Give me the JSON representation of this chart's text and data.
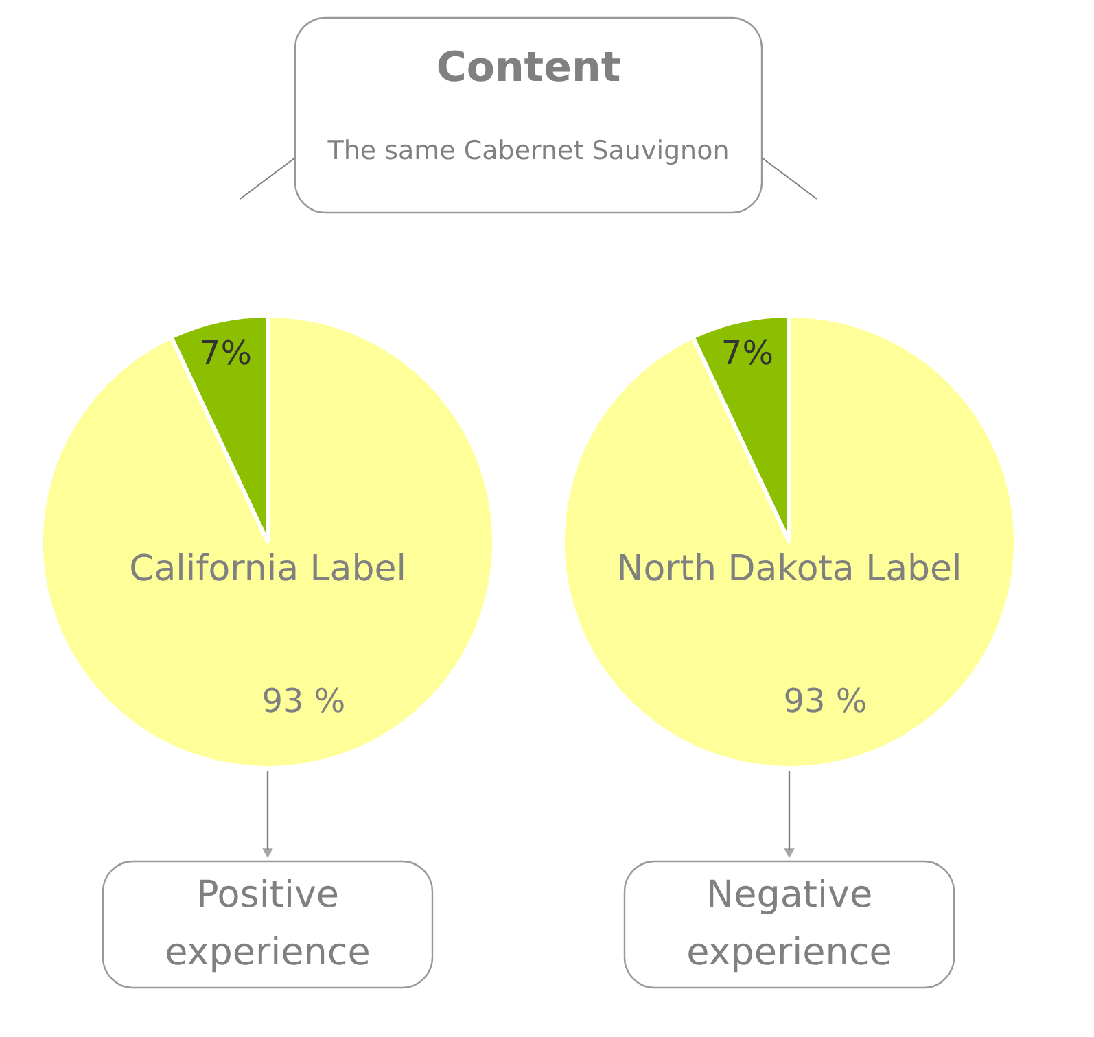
{
  "chart_data": [
    {
      "type": "pie",
      "title": "California Label",
      "categories": [
        null,
        null
      ],
      "values": [
        93,
        7
      ],
      "colors": [
        "#ffff99",
        "#8cbf00"
      ],
      "value_labels": [
        "93 %",
        "7%"
      ],
      "legend": false,
      "annotations": [
        "Content",
        "The same Cabernet Sauvignon",
        "Positive experience"
      ]
    },
    {
      "type": "pie",
      "title": "North Dakota Label",
      "categories": [
        null,
        null
      ],
      "values": [
        93,
        7
      ],
      "colors": [
        "#ffff99",
        "#8cbf00"
      ],
      "value_labels": [
        "93 %",
        "7%"
      ],
      "legend": false,
      "annotations": [
        "Negative experience"
      ]
    }
  ]
}
